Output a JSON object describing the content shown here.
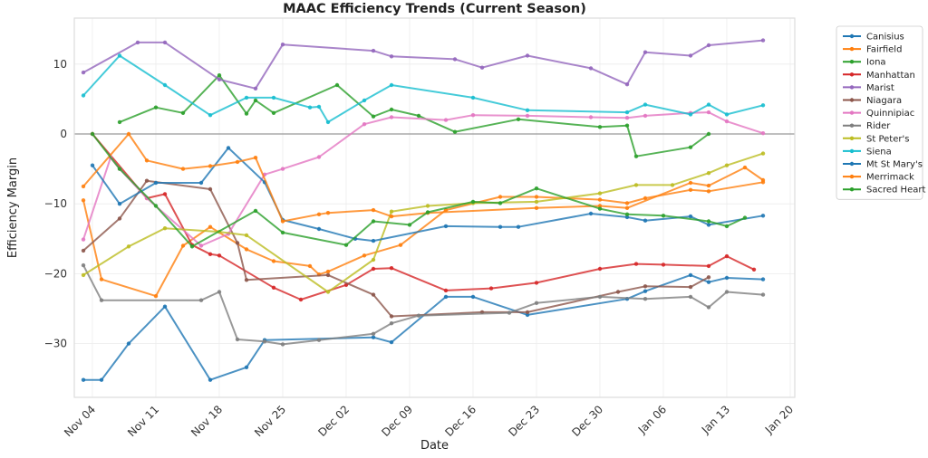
{
  "chart_data": {
    "type": "line",
    "title": "MAAC Efficiency Trends (Current Season)",
    "xlabel": "Date",
    "ylabel": "Efficiency Margin",
    "x_unit": "days since Nov 04",
    "xlim": [
      -1.5,
      78
    ],
    "ylim": [
      -37.5,
      16
    ],
    "x_ticks": [
      {
        "day": 0,
        "label": "Nov 04"
      },
      {
        "day": 7,
        "label": "Nov 11"
      },
      {
        "day": 14,
        "label": "Nov 18"
      },
      {
        "day": 21,
        "label": "Nov 25"
      },
      {
        "day": 28,
        "label": "Dec 02"
      },
      {
        "day": 35,
        "label": "Dec 09"
      },
      {
        "day": 42,
        "label": "Dec 16"
      },
      {
        "day": 49,
        "label": "Dec 23"
      },
      {
        "day": 56,
        "label": "Dec 30"
      },
      {
        "day": 63,
        "label": "Jan 06"
      },
      {
        "day": 70,
        "label": "Jan 13"
      },
      {
        "day": 77,
        "label": "Jan 20"
      }
    ],
    "y_ticks": [
      {
        "value": 10,
        "label": "10"
      },
      {
        "value": 0,
        "label": "0"
      },
      {
        "value": -10,
        "label": "−10"
      },
      {
        "value": -20,
        "label": "−20"
      },
      {
        "value": -30,
        "label": "−30"
      }
    ],
    "grid": true,
    "zero_line": true,
    "legend_position": "outside-right-top",
    "series": [
      {
        "name": "Canisius",
        "color": "#1f77b4",
        "x": [
          -1,
          1,
          4,
          8,
          13,
          17,
          19,
          31,
          33,
          39,
          42,
          48,
          59,
          61,
          66,
          68,
          70,
          74
        ],
        "y": [
          -35.2,
          -35.2,
          -30.0,
          -24.7,
          -35.2,
          -33.4,
          -29.5,
          -29.1,
          -29.8,
          -23.3,
          -23.3,
          -25.9,
          -23.6,
          -22.5,
          -20.2,
          -21.2,
          -20.6,
          -20.8
        ]
      },
      {
        "name": "Fairfield",
        "color": "#ff7f0e",
        "x": [
          -1,
          1,
          7,
          10,
          13,
          17,
          20,
          24,
          25,
          26,
          30,
          34,
          39,
          45,
          49,
          56,
          59,
          61,
          66,
          68,
          74
        ],
        "y": [
          -9.5,
          -20.8,
          -23.2,
          -16.0,
          -13.3,
          -16.5,
          -18.2,
          -18.9,
          -20.1,
          -19.7,
          -17.4,
          -15.9,
          -10.9,
          -9.0,
          -9.0,
          -9.4,
          -9.9,
          -9.2,
          -8.0,
          -8.2,
          -6.9
        ]
      },
      {
        "name": "Iona",
        "color": "#2ca02c",
        "x": [
          3,
          7,
          10,
          14,
          17,
          18,
          20,
          27,
          31,
          33,
          36,
          40,
          47,
          56,
          59,
          60,
          66,
          68
        ],
        "y": [
          1.7,
          3.8,
          3.0,
          8.4,
          2.9,
          4.8,
          3.0,
          7.0,
          2.5,
          3.5,
          2.6,
          0.3,
          2.1,
          1.0,
          1.2,
          -3.2,
          -1.9,
          0.0
        ]
      },
      {
        "name": "Manhattan",
        "color": "#d62728",
        "x": [
          0,
          6,
          8,
          11,
          13,
          14,
          20,
          23,
          28,
          31,
          33,
          39,
          44,
          49,
          56,
          60,
          63,
          68,
          70,
          73
        ],
        "y": [
          0.0,
          -9.2,
          -8.6,
          -15.9,
          -17.2,
          -17.4,
          -22.0,
          -23.7,
          -21.6,
          -19.3,
          -19.2,
          -22.4,
          -22.1,
          -21.3,
          -19.3,
          -18.6,
          -18.7,
          -18.9,
          -17.5,
          -19.4
        ]
      },
      {
        "name": "Marist",
        "color": "#9467bd",
        "x": [
          -1,
          5,
          8,
          14,
          18,
          21,
          31,
          33,
          40,
          43,
          48,
          55,
          59,
          61,
          66,
          68,
          74
        ],
        "y": [
          8.8,
          13.1,
          13.1,
          7.8,
          6.5,
          12.8,
          11.9,
          11.1,
          10.7,
          9.5,
          11.2,
          9.4,
          7.1,
          11.7,
          11.2,
          12.7,
          13.4
        ]
      },
      {
        "name": "Niagara",
        "color": "#8c564b",
        "x": [
          -1,
          3,
          6,
          13,
          16,
          17,
          26,
          31,
          33,
          43,
          48,
          58,
          61,
          66,
          68
        ],
        "y": [
          -16.7,
          -12.1,
          -6.7,
          -7.9,
          -15.6,
          -20.9,
          -20.2,
          -23.0,
          -26.1,
          -25.5,
          -25.5,
          -22.6,
          -21.8,
          -21.9,
          -20.5
        ]
      },
      {
        "name": "Quinnipiac",
        "color": "#e377c2",
        "x": [
          -1,
          2,
          3,
          6,
          12,
          15,
          19,
          21,
          25,
          30,
          33,
          39,
          42,
          48,
          55,
          59,
          61,
          66,
          68,
          70,
          74
        ],
        "y": [
          -15.1,
          -3.4,
          -5.0,
          -9.2,
          -16.0,
          -14.3,
          -5.8,
          -5.0,
          -3.3,
          1.4,
          2.4,
          2.0,
          2.7,
          2.6,
          2.4,
          2.3,
          2.6,
          3.0,
          3.1,
          1.8,
          0.1
        ]
      },
      {
        "name": "Rider",
        "color": "#7f7f7f",
        "x": [
          -1,
          1,
          12,
          14,
          16,
          19,
          21,
          25,
          31,
          33,
          36,
          46,
          49,
          56,
          61,
          66,
          68,
          70,
          74
        ],
        "y": [
          -18.8,
          -23.8,
          -23.8,
          -22.6,
          -29.4,
          -29.7,
          -30.1,
          -29.5,
          -28.6,
          -27.1,
          -26.0,
          -25.6,
          -24.2,
          -23.3,
          -23.6,
          -23.3,
          -24.8,
          -22.6,
          -23.0
        ]
      },
      {
        "name": "St Peter's",
        "color": "#bcbd22",
        "x": [
          -1,
          4,
          8,
          14,
          17,
          26,
          31,
          33,
          37,
          42,
          49,
          56,
          60,
          64,
          68,
          70,
          74
        ],
        "y": [
          -20.2,
          -16.1,
          -13.5,
          -14.0,
          -14.5,
          -22.6,
          -18.0,
          -11.1,
          -10.3,
          -9.9,
          -9.7,
          -8.5,
          -7.3,
          -7.3,
          -5.6,
          -4.5,
          -2.8
        ]
      },
      {
        "name": "Siena",
        "color": "#17becf",
        "x": [
          -1,
          3,
          8,
          13,
          17,
          20,
          24,
          25,
          26,
          30,
          33,
          42,
          48,
          59,
          61,
          66,
          68,
          70,
          74
        ],
        "y": [
          5.5,
          11.2,
          7.0,
          2.7,
          5.2,
          5.2,
          3.8,
          3.9,
          1.7,
          4.8,
          7.0,
          5.2,
          3.4,
          3.1,
          4.2,
          2.8,
          4.2,
          2.8,
          4.1
        ]
      },
      {
        "name": "Mt St Mary's",
        "color": "#1f77b4",
        "x": [
          0,
          3,
          7,
          12,
          15,
          19,
          21,
          25,
          29,
          31,
          39,
          45,
          47,
          55,
          59,
          61,
          66,
          68,
          74
        ],
        "y": [
          -4.5,
          -10.0,
          -7.0,
          -7.0,
          -2.0,
          -6.9,
          -12.3,
          -13.6,
          -15.0,
          -15.3,
          -13.2,
          -13.3,
          -13.3,
          -11.4,
          -11.9,
          -12.4,
          -11.8,
          -13.0,
          -11.7
        ]
      },
      {
        "name": "Merrimack",
        "color": "#ff7f0e",
        "x": [
          -1,
          4,
          6,
          10,
          13,
          16,
          18,
          21,
          25,
          26,
          31,
          33,
          37,
          49,
          56,
          59,
          66,
          68,
          72,
          74
        ],
        "y": [
          -7.5,
          0.0,
          -3.8,
          -5.0,
          -4.6,
          -4.0,
          -3.4,
          -12.5,
          -11.5,
          -11.3,
          -10.9,
          -11.8,
          -11.3,
          -10.6,
          -10.3,
          -10.6,
          -7.0,
          -7.4,
          -4.8,
          -6.6
        ]
      },
      {
        "name": "Sacred Heart",
        "color": "#2ca02c",
        "x": [
          0,
          3,
          7,
          11,
          18,
          21,
          28,
          31,
          35,
          37,
          42,
          45,
          49,
          56,
          59,
          63,
          68,
          70,
          72
        ],
        "y": [
          0.0,
          -5.0,
          -10.3,
          -16.1,
          -11.0,
          -14.1,
          -15.9,
          -12.5,
          -13.0,
          -11.2,
          -9.7,
          -9.9,
          -7.8,
          -10.7,
          -11.5,
          -11.7,
          -12.5,
          -13.2,
          -12.0
        ]
      }
    ]
  }
}
